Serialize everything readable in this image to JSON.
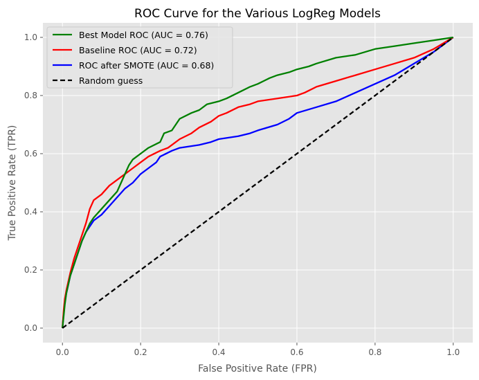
{
  "chart_data": {
    "type": "line",
    "title": "ROC Curve for the Various LogReg Models",
    "xlabel": "False Positive Rate (FPR)",
    "ylabel": "True Positive Rate (TPR)",
    "xlim": [
      -0.05,
      1.05
    ],
    "ylim": [
      -0.05,
      1.05
    ],
    "xticks": [
      0.0,
      0.2,
      0.4,
      0.6,
      0.8,
      1.0
    ],
    "yticks": [
      0.0,
      0.2,
      0.4,
      0.6,
      0.8,
      1.0
    ],
    "xtick_labels": [
      "0.0",
      "0.2",
      "0.4",
      "0.6",
      "0.8",
      "1.0"
    ],
    "ytick_labels": [
      "0.0",
      "0.2",
      "0.4",
      "0.6",
      "0.8",
      "1.0"
    ],
    "grid": true,
    "legend_position": "top-left",
    "series": [
      {
        "name": "Best Model ROC (AUC = 0.76)",
        "color": "#008000",
        "dash": "solid",
        "x": [
          0.0,
          0.003,
          0.006,
          0.01,
          0.015,
          0.02,
          0.03,
          0.04,
          0.05,
          0.06,
          0.07,
          0.08,
          0.1,
          0.12,
          0.14,
          0.15,
          0.16,
          0.17,
          0.18,
          0.19,
          0.2,
          0.22,
          0.25,
          0.26,
          0.28,
          0.29,
          0.3,
          0.33,
          0.35,
          0.37,
          0.4,
          0.42,
          0.45,
          0.48,
          0.5,
          0.53,
          0.55,
          0.58,
          0.6,
          0.63,
          0.65,
          0.7,
          0.75,
          0.8,
          0.85,
          0.9,
          0.95,
          1.0
        ],
        "y": [
          0.0,
          0.04,
          0.08,
          0.12,
          0.15,
          0.18,
          0.22,
          0.26,
          0.3,
          0.33,
          0.36,
          0.38,
          0.41,
          0.44,
          0.47,
          0.5,
          0.53,
          0.56,
          0.58,
          0.59,
          0.6,
          0.62,
          0.64,
          0.67,
          0.68,
          0.7,
          0.72,
          0.74,
          0.75,
          0.77,
          0.78,
          0.79,
          0.81,
          0.83,
          0.84,
          0.86,
          0.87,
          0.88,
          0.89,
          0.9,
          0.91,
          0.93,
          0.94,
          0.96,
          0.97,
          0.98,
          0.99,
          1.0
        ]
      },
      {
        "name": "Baseline ROC (AUC = 0.72)",
        "color": "#ff0000",
        "dash": "solid",
        "x": [
          0.0,
          0.003,
          0.006,
          0.01,
          0.015,
          0.02,
          0.03,
          0.04,
          0.05,
          0.06,
          0.07,
          0.08,
          0.1,
          0.12,
          0.14,
          0.16,
          0.18,
          0.2,
          0.22,
          0.25,
          0.27,
          0.28,
          0.3,
          0.33,
          0.35,
          0.38,
          0.4,
          0.42,
          0.45,
          0.48,
          0.5,
          0.55,
          0.6,
          0.62,
          0.65,
          0.7,
          0.75,
          0.8,
          0.85,
          0.9,
          0.95,
          1.0
        ],
        "y": [
          0.0,
          0.06,
          0.1,
          0.13,
          0.16,
          0.19,
          0.24,
          0.28,
          0.32,
          0.36,
          0.41,
          0.44,
          0.46,
          0.49,
          0.51,
          0.53,
          0.55,
          0.57,
          0.59,
          0.61,
          0.62,
          0.63,
          0.65,
          0.67,
          0.69,
          0.71,
          0.73,
          0.74,
          0.76,
          0.77,
          0.78,
          0.79,
          0.8,
          0.81,
          0.83,
          0.85,
          0.87,
          0.89,
          0.91,
          0.93,
          0.96,
          1.0
        ]
      },
      {
        "name": "ROC after SMOTE (AUC = 0.68)",
        "color": "#0000ff",
        "dash": "solid",
        "x": [
          0.0,
          0.003,
          0.006,
          0.01,
          0.015,
          0.02,
          0.03,
          0.04,
          0.05,
          0.06,
          0.07,
          0.08,
          0.1,
          0.12,
          0.14,
          0.16,
          0.18,
          0.2,
          0.22,
          0.24,
          0.25,
          0.28,
          0.3,
          0.35,
          0.38,
          0.4,
          0.45,
          0.48,
          0.5,
          0.55,
          0.58,
          0.6,
          0.65,
          0.7,
          0.75,
          0.8,
          0.85,
          0.9,
          0.95,
          1.0
        ],
        "y": [
          0.0,
          0.05,
          0.09,
          0.12,
          0.15,
          0.18,
          0.22,
          0.26,
          0.3,
          0.33,
          0.35,
          0.37,
          0.39,
          0.42,
          0.45,
          0.48,
          0.5,
          0.53,
          0.55,
          0.57,
          0.59,
          0.61,
          0.62,
          0.63,
          0.64,
          0.65,
          0.66,
          0.67,
          0.68,
          0.7,
          0.72,
          0.74,
          0.76,
          0.78,
          0.81,
          0.84,
          0.87,
          0.91,
          0.95,
          1.0
        ]
      },
      {
        "name": "Random guess",
        "color": "#000000",
        "dash": "dashed",
        "x": [
          0.0,
          1.0
        ],
        "y": [
          0.0,
          1.0
        ]
      }
    ]
  }
}
